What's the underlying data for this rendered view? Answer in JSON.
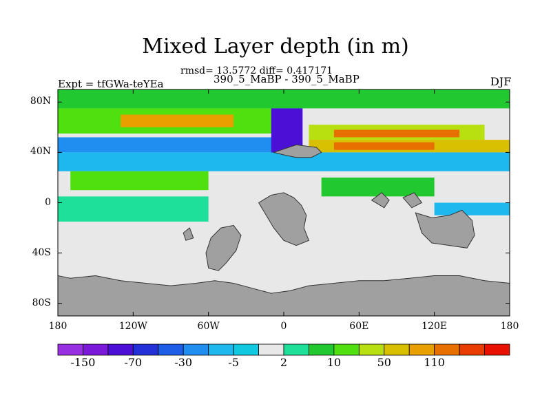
{
  "title": "Mixed Layer depth (in m)",
  "stats_line": "rmsd= 13.5772 diff= 0.417171",
  "subtitle": "390_5_MaBP - 390_5_MaBP",
  "experiment": "Expt = tfGWa-teYEa",
  "season": "DJF",
  "chart_data": {
    "type": "heatmap",
    "projection": "cylindrical-equidistant",
    "variable": "Mixed Layer depth difference (m)",
    "xlim": [
      -180,
      180
    ],
    "ylim": [
      -90,
      90
    ],
    "x_ticks": [
      {
        "value": -180,
        "label": "180"
      },
      {
        "value": -120,
        "label": "120W"
      },
      {
        "value": -60,
        "label": "60W"
      },
      {
        "value": 0,
        "label": "0"
      },
      {
        "value": 60,
        "label": "60E"
      },
      {
        "value": 120,
        "label": "120E"
      },
      {
        "value": 180,
        "label": "180"
      }
    ],
    "y_ticks": [
      {
        "value": 80,
        "label": "80N"
      },
      {
        "value": 40,
        "label": "40N"
      },
      {
        "value": 0,
        "label": "0"
      },
      {
        "value": -40,
        "label": "40S"
      },
      {
        "value": -80,
        "label": "80S"
      }
    ],
    "land_color": "#a0a0a0",
    "colorbar": {
      "colors": [
        "#9630e0",
        "#7a1ad8",
        "#4b10d6",
        "#2430d8",
        "#1e5ee6",
        "#1f8ef0",
        "#1eb8ee",
        "#10c8e0",
        "#e8e8e8",
        "#1ee09a",
        "#22c830",
        "#50e010",
        "#b8e010",
        "#d8c000",
        "#e8a000",
        "#e87000",
        "#e83c00",
        "#e81000"
      ],
      "labels": [
        {
          "after_index": 0,
          "label": "-150"
        },
        {
          "after_index": 2,
          "label": "-70"
        },
        {
          "after_index": 4,
          "label": "-30"
        },
        {
          "after_index": 6,
          "label": "-5"
        },
        {
          "after_index": 8,
          "label": "2"
        },
        {
          "after_index": 10,
          "label": "10"
        },
        {
          "after_index": 12,
          "label": "50"
        },
        {
          "after_index": 14,
          "label": "110"
        }
      ]
    },
    "bands": [
      {
        "lat": [
          75,
          90
        ],
        "lon": [
          -180,
          180
        ],
        "value": 8
      },
      {
        "lat": [
          55,
          75
        ],
        "lon": [
          -180,
          -10
        ],
        "value": 25
      },
      {
        "lat": [
          60,
          70
        ],
        "lon": [
          -130,
          -40
        ],
        "value": 80
      },
      {
        "lat": [
          50,
          62
        ],
        "lon": [
          20,
          160
        ],
        "value": 40
      },
      {
        "lat": [
          52,
          58
        ],
        "lon": [
          40,
          140
        ],
        "value": 110
      },
      {
        "lat": [
          40,
          52
        ],
        "lon": [
          -180,
          0
        ],
        "value": -20
      },
      {
        "lat": [
          40,
          50
        ],
        "lon": [
          20,
          180
        ],
        "value": 60
      },
      {
        "lat": [
          42,
          48
        ],
        "lon": [
          40,
          120
        ],
        "value": 130
      },
      {
        "lat": [
          35,
          75
        ],
        "lon": [
          -10,
          15
        ],
        "value": -80
      },
      {
        "lat": [
          25,
          40
        ],
        "lon": [
          -180,
          180
        ],
        "value": -8
      },
      {
        "lat": [
          10,
          25
        ],
        "lon": [
          -170,
          -60
        ],
        "value": 10
      },
      {
        "lat": [
          5,
          20
        ],
        "lon": [
          30,
          120
        ],
        "value": 6
      },
      {
        "lat": [
          -15,
          5
        ],
        "lon": [
          -180,
          -60
        ],
        "value": 4
      },
      {
        "lat": [
          -10,
          0
        ],
        "lon": [
          120,
          180
        ],
        "value": -6
      }
    ]
  }
}
